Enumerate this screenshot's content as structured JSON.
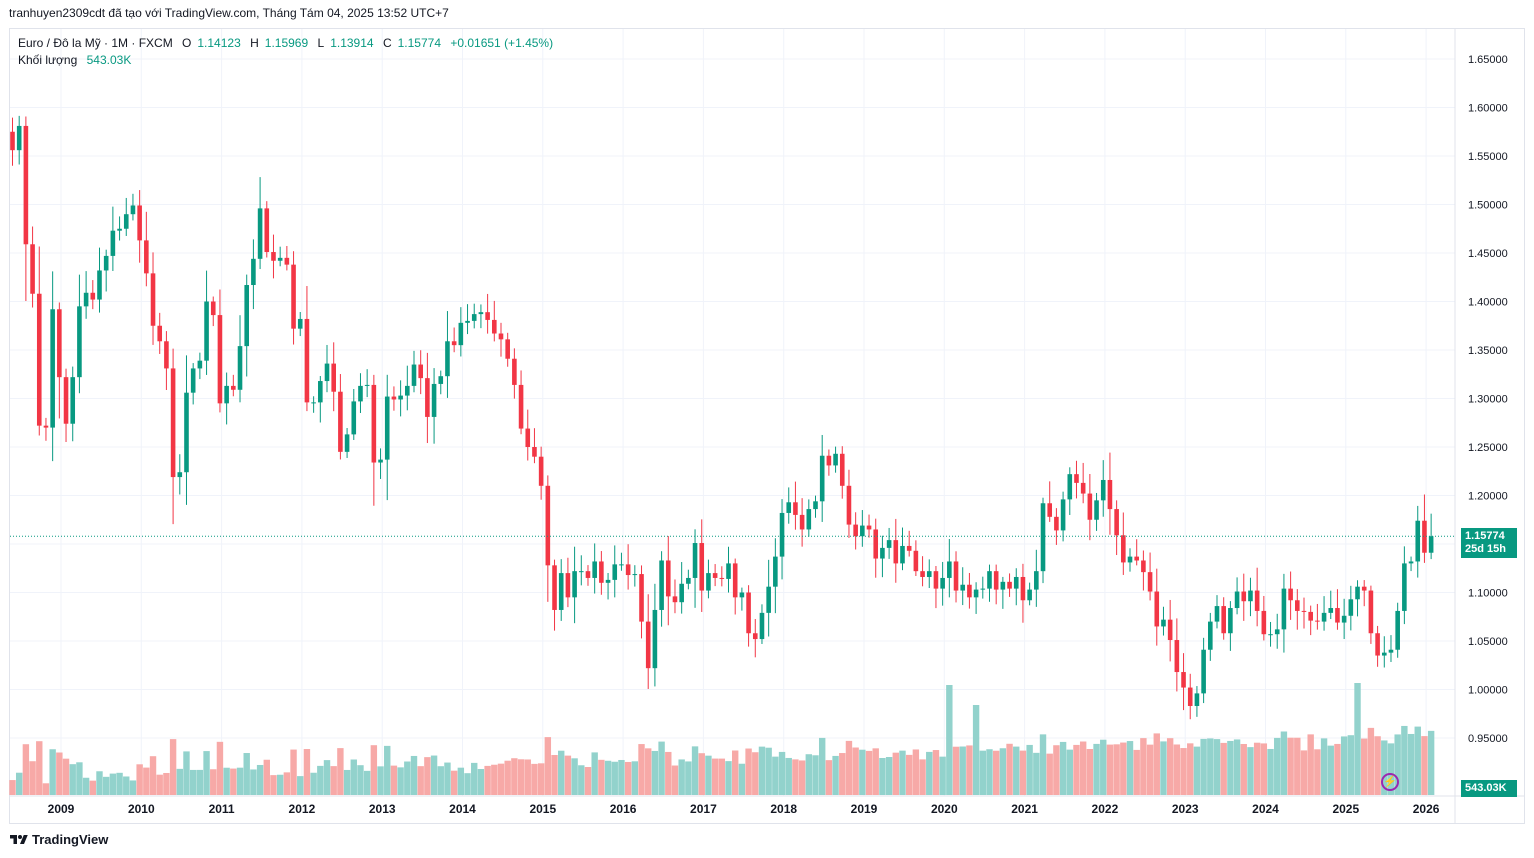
{
  "header": {
    "attribution": "tranhuyen2309cdt đã tạo với TradingView.com, Tháng Tám 04, 2025 13:52 UTC+7"
  },
  "legend": {
    "symbol": "Euro / Đô la Mỹ · 1M · FXCM",
    "open_label": "O",
    "open": "1.14123",
    "high_label": "H",
    "high": "1.15969",
    "low_label": "L",
    "low": "1.13914",
    "close_label": "C",
    "close": "1.15774",
    "change": "+0.01651 (+1.45%)",
    "volume_label": "Khối lượng",
    "volume": "543.03K"
  },
  "price_tag": {
    "price": "1.15774",
    "countdown": "25d 15h"
  },
  "volume_tag": "543.03K",
  "footer": {
    "brand": "TradingView"
  },
  "colors": {
    "up": "#089981",
    "down": "#f23645",
    "vol_up": "#92d2cc",
    "vol_down": "#f7a9a7",
    "grid": "#f0f3fa"
  },
  "icons": {
    "alert": "lightning-icon",
    "logo": "tradingview-logo-icon"
  },
  "chart_data": {
    "type": "candlestick",
    "ylim": [
      0.905,
      1.67
    ],
    "y_ticks": [
      "1.65000",
      "1.60000",
      "1.55000",
      "1.50000",
      "1.45000",
      "1.40000",
      "1.35000",
      "1.30000",
      "1.25000",
      "1.20000",
      "1.15000",
      "1.10000",
      "1.05000",
      "1.00000",
      "0.95000"
    ],
    "x_ticks": [
      "2009",
      "2010",
      "2011",
      "2012",
      "2013",
      "2014",
      "2015",
      "2016",
      "2017",
      "2018",
      "2019",
      "2020",
      "2021",
      "2022",
      "2023",
      "2024",
      "2025",
      "2026"
    ],
    "x_start": 2008.5,
    "x_end": 2026.4,
    "closes": [
      1.556,
      1.581,
      1.459,
      1.408,
      1.272,
      1.27,
      1.392,
      1.322,
      1.274,
      1.322,
      1.395,
      1.409,
      1.402,
      1.432,
      1.447,
      1.473,
      1.475,
      1.49,
      1.499,
      1.463,
      1.429,
      1.375,
      1.359,
      1.331,
      1.219,
      1.224,
      1.306,
      1.331,
      1.339,
      1.4,
      1.386,
      1.295,
      1.313,
      1.309,
      1.354,
      1.417,
      1.444,
      1.496,
      1.451,
      1.442,
      1.445,
      1.438,
      1.372,
      1.382,
      1.296,
      1.296,
      1.318,
      1.336,
      1.307,
      1.245,
      1.263,
      1.297,
      1.313,
      1.314,
      1.234,
      1.237,
      1.302,
      1.299,
      1.303,
      1.313,
      1.335,
      1.321,
      1.281,
      1.315,
      1.323,
      1.359,
      1.355,
      1.378,
      1.38,
      1.387,
      1.389,
      1.381,
      1.367,
      1.361,
      1.341,
      1.314,
      1.269,
      1.25,
      1.24,
      1.21,
      1.128,
      1.082,
      1.12,
      1.095,
      1.122,
      1.122,
      1.115,
      1.132,
      1.11,
      1.113,
      1.129,
      1.129,
      1.118,
      1.119,
      1.07,
      1.022,
      1.082,
      1.133,
      1.096,
      1.09,
      1.109,
      1.115,
      1.151,
      1.102,
      1.12,
      1.115,
      1.114,
      1.13,
      1.095,
      1.1,
      1.058,
      1.052,
      1.079,
      1.106,
      1.137,
      1.182,
      1.193,
      1.18,
      1.165,
      1.186,
      1.194,
      1.241,
      1.231,
      1.243,
      1.21,
      1.17,
      1.158,
      1.169,
      1.165,
      1.135,
      1.146,
      1.154,
      1.13,
      1.148,
      1.143,
      1.122,
      1.116,
      1.122,
      1.104,
      1.115,
      1.132,
      1.102,
      1.108,
      1.095,
      1.103,
      1.104,
      1.122,
      1.103,
      1.111,
      1.104,
      1.116,
      1.092,
      1.103,
      1.122,
      1.192,
      1.178,
      1.164,
      1.196,
      1.222,
      1.213,
      1.202,
      1.175,
      1.195,
      1.216,
      1.186,
      1.159,
      1.131,
      1.137,
      1.133,
      1.121,
      1.101,
      1.065,
      1.072,
      1.051,
      1.018,
      1.002,
      0.983,
      0.996,
      1.041,
      1.07,
      1.086,
      1.058,
      1.084,
      1.101,
      1.091,
      1.102,
      1.081,
      1.057,
      1.057,
      1.062,
      1.104,
      1.092,
      1.081,
      1.08,
      1.071,
      1.07,
      1.079,
      1.084,
      1.069,
      1.076,
      1.093,
      1.106,
      1.102,
      1.058,
      1.035,
      1.038,
      1.041,
      1.081,
      1.13,
      1.132,
      1.174,
      1.141,
      1.158
    ],
    "volume_note": "Khối lượng 543.03K"
  }
}
